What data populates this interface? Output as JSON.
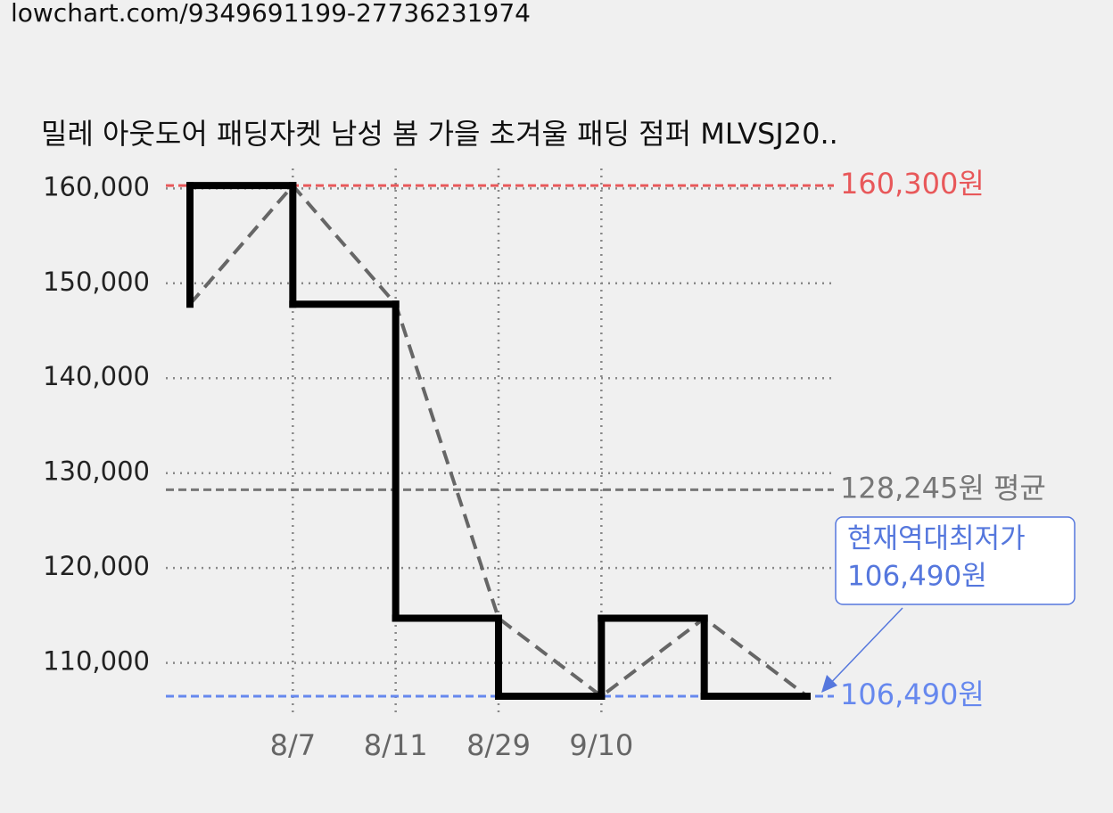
{
  "url": "lowchart.com/9349691199-27736231974",
  "chart_data": {
    "type": "step",
    "title": "밀레 아웃도어 패딩자켓 남성 봄 가을 초겨울 패딩 점퍼 MLVSJ20..",
    "categories": [
      null,
      "8/7",
      "8/11",
      "8/29",
      "9/10",
      null,
      null
    ],
    "values": [
      147800,
      160300,
      147800,
      114700,
      106490,
      114700,
      106490
    ],
    "color": "#000000",
    "trend_color": "#666666",
    "ylim": [
      104700,
      162100
    ],
    "yticks": [
      {
        "value": 110000,
        "label": "110,000"
      },
      {
        "value": 120000,
        "label": "120,000"
      },
      {
        "value": 130000,
        "label": "130,000"
      },
      {
        "value": 140000,
        "label": "140,000"
      },
      {
        "value": 150000,
        "label": "150,000"
      },
      {
        "value": 160000,
        "label": "160,000"
      }
    ],
    "grid": true,
    "reference_lines": [
      {
        "value": 160300,
        "label": "160,300원",
        "color": "#e8585a"
      },
      {
        "value": 128245,
        "label": "128,245원 평균",
        "color": "#777777"
      },
      {
        "value": 106490,
        "label": "106,490원",
        "color": "#6688ee"
      }
    ],
    "annotation": {
      "lines": [
        "현재역대최저가",
        "106,490원"
      ],
      "color": "#5577dd"
    }
  }
}
